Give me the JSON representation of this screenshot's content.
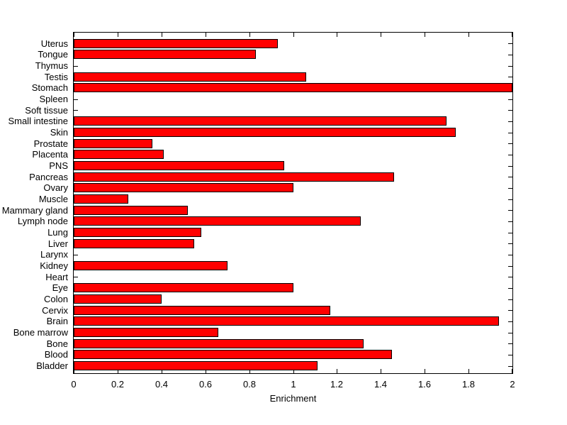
{
  "figure": {
    "background": "#FFFFFF",
    "axis_color": "#000000",
    "bar_fill": "#FF0000",
    "bar_edge": "#000000"
  },
  "chart_data": {
    "type": "bar",
    "orientation": "horizontal",
    "order": "top-to-bottom",
    "title": "",
    "xlabel": "Enrichment",
    "ylabel": "",
    "xlim": [
      0,
      2
    ],
    "grid": false,
    "legend": false,
    "x_ticks": [
      0,
      0.2,
      0.4,
      0.6,
      0.8,
      1,
      1.2,
      1.4,
      1.6,
      1.8,
      2
    ],
    "x_tick_labels": [
      "0",
      "0.2",
      "0.4",
      "0.6",
      "0.8",
      "1",
      "1.2",
      "1.4",
      "1.6",
      "1.8",
      "2"
    ],
    "categories": [
      "Uterus",
      "Tongue",
      "Thymus",
      "Testis",
      "Stomach",
      "Spleen",
      "Soft tissue",
      "Small intestine",
      "Skin",
      "Prostate",
      "Placenta",
      "PNS",
      "Pancreas",
      "Ovary",
      "Muscle",
      "Mammary gland",
      "Lymph node",
      "Lung",
      "Liver",
      "Larynx",
      "Kidney",
      "Heart",
      "Eye",
      "Colon",
      "Cervix",
      "Brain",
      "Bone marrow",
      "Bone",
      "Blood",
      "Bladder"
    ],
    "values": [
      0.93,
      0.83,
      0,
      1.06,
      2,
      0,
      0,
      1.7,
      1.74,
      0.36,
      0.41,
      0.96,
      1.46,
      1.0,
      0.25,
      0.52,
      1.31,
      0.58,
      0.55,
      0,
      0.7,
      0,
      1.0,
      0.4,
      1.17,
      1.94,
      0.66,
      1.32,
      1.45,
      1.11
    ]
  }
}
